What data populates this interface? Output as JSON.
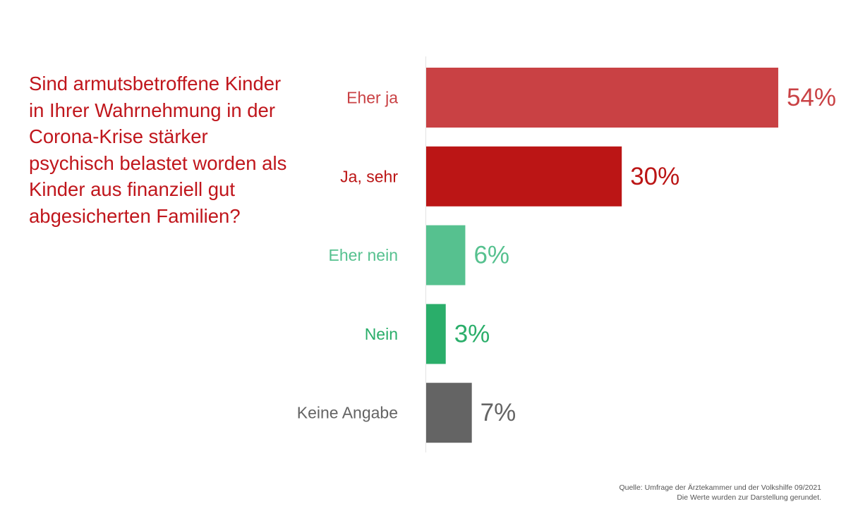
{
  "chart_data": {
    "type": "bar",
    "orientation": "horizontal",
    "title": "Sind armutsbetroffene Kinder in Ihrer Wahrnehmung in der Corona-Krise stärker psychisch belastet worden als Kinder aus finanziell gut abgesicherten Familien?",
    "categories": [
      "Eher ja",
      "Ja, sehr",
      "Eher nein",
      "Nein",
      "Keine Angabe"
    ],
    "values": [
      54,
      30,
      6,
      3,
      7
    ],
    "value_labels": [
      "54%",
      "30%",
      "6%",
      "3%",
      "7%"
    ],
    "colors": [
      "#c94144",
      "#bb1515",
      "#56c18f",
      "#2aae6a",
      "#646464"
    ],
    "xlim": [
      0,
      100
    ],
    "grid": false,
    "legend": "none"
  },
  "footer": {
    "source": "Quelle: Umfrage der Ärztekammer und der Volkshilfe 09/2021",
    "note": "Die Werte wurden zur Darstellung gerundet."
  }
}
